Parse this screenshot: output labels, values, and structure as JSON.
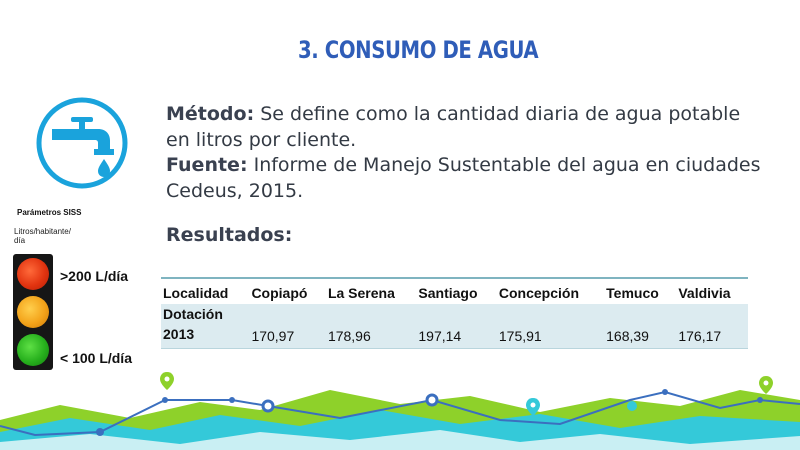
{
  "slide": {
    "title": "3. CONSUMO DE AGUA",
    "method_label": "Método:",
    "method_text": " Se define como la cantidad diaria de agua potable en litros por cliente.",
    "source_label": "Fuente:",
    "source_text": " Informe de Manejo Sustentable del agua en ciudades Cedeus, 2015.",
    "results_label": "Resultados:"
  },
  "icon": {
    "name": "water-tap-icon",
    "color": "#1aa3dc"
  },
  "siss": {
    "title": "Parámetros SISS",
    "unit": "Litros/habitante/ día",
    "high_label": ">200 L/día",
    "low_label": "< 100 L/día"
  },
  "table": {
    "headers": [
      "Localidad",
      "Copiapó",
      "La Serena",
      "Santiago",
      "Concepción",
      "Temuco",
      "Valdivia"
    ],
    "row_label_line1": "Dotación",
    "row_label_line2": "2013",
    "values": [
      "170,97",
      "178,96",
      "197,14",
      "175,91",
      "168,39",
      "176,17"
    ]
  },
  "colors": {
    "title": "#2f5db8",
    "table_row_bg": "#dcebf0",
    "table_border": "#7fb4c0",
    "decor_green": "#8ed12a",
    "decor_cyan": "#34c9d9",
    "decor_line": "#3b6fbf"
  }
}
